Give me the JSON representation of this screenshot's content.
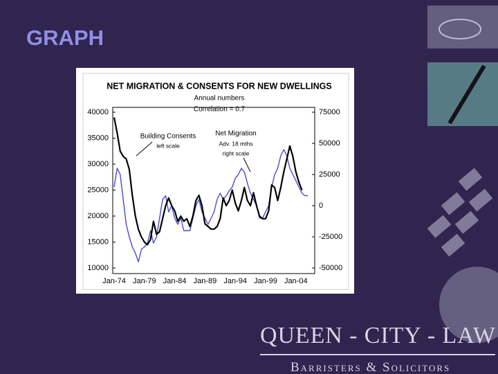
{
  "slide": {
    "title": "GRAPH",
    "logo": {
      "name": "QUEEN - CITY - LAW",
      "tagline": "Barristers & Solicitors"
    }
  },
  "chart_data": {
    "type": "line",
    "title": "NET MIGRATION & CONSENTS FOR NEW DWELLINGS",
    "subtitle": "Annual numbers",
    "note": "Correlation = 0.7",
    "annotations": [
      {
        "text": "Building Consents",
        "subtext": "left scale"
      },
      {
        "text": "Net Migration",
        "subtext": "Adv. 18 mths",
        "subtext2": "right scale"
      }
    ],
    "categories": [
      "Jan-74",
      null,
      null,
      null,
      null,
      null,
      null,
      null,
      null,
      null,
      "Jan-79",
      null,
      null,
      null,
      null,
      null,
      null,
      null,
      null,
      null,
      "Jan-84",
      null,
      null,
      null,
      null,
      null,
      null,
      null,
      null,
      null,
      "Jan-89",
      null,
      null,
      null,
      null,
      null,
      null,
      null,
      null,
      null,
      "Jan-94",
      null,
      null,
      null,
      null,
      null,
      null,
      null,
      null,
      null,
      "Jan-99",
      null,
      null,
      null,
      null,
      null,
      null,
      null,
      null,
      null,
      "Jan-04",
      null,
      null,
      null,
      null
    ],
    "series": [
      {
        "name": "Building Consents",
        "color": "#000000",
        "axis": "y",
        "values": [
          39000,
          36000,
          32500,
          31500,
          31000,
          29000,
          24000,
          20000,
          17500,
          16000,
          15000,
          14500,
          15500,
          19000,
          16500,
          17000,
          19500,
          22000,
          23500,
          22000,
          21000,
          19000,
          20000,
          19000,
          19500,
          18000,
          20000,
          23000,
          24000,
          22000,
          18500,
          18000,
          17500,
          17500,
          18000,
          19500,
          23500,
          22000,
          23000,
          25000,
          22500,
          21000,
          23000,
          25500,
          23000,
          22000,
          24500,
          22000,
          20000,
          19500,
          19500,
          21000,
          26000,
          25500,
          23000,
          25500,
          28500,
          31000,
          33500,
          31500,
          28500,
          26500,
          25000,
          null,
          null
        ]
      },
      {
        "name": "Net Migration",
        "color": "#4a4ac8",
        "axis": "y2",
        "values": [
          15000,
          30000,
          25000,
          5000,
          -15000,
          -25000,
          -33000,
          -38000,
          -45000,
          -35000,
          -33000,
          -30000,
          -20000,
          -30000,
          -25000,
          -10000,
          5000,
          8000,
          -5000,
          0,
          -10000,
          -15000,
          -10000,
          -20000,
          -20000,
          -20000,
          -10000,
          0,
          5000,
          -5000,
          -10000,
          -15000,
          -10000,
          -5000,
          5000,
          10000,
          5000,
          8000,
          12000,
          15000,
          22000,
          25000,
          30000,
          27000,
          18000,
          10000,
          5000,
          0,
          -10000,
          -10000,
          -5000,
          0,
          15000,
          25000,
          30000,
          40000,
          45000,
          40000,
          30000,
          25000,
          20000,
          15000,
          10000,
          8000,
          8000
        ]
      }
    ],
    "ylim": [
      10000,
      40000
    ],
    "yticks": [
      10000,
      15000,
      20000,
      25000,
      30000,
      35000,
      40000
    ],
    "y2lim": [
      -50000,
      75000
    ],
    "y2ticks": [
      -50000,
      -25000,
      0,
      25000,
      50000,
      75000
    ]
  }
}
